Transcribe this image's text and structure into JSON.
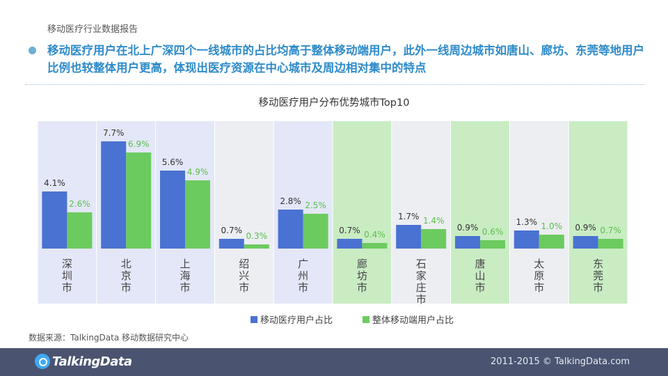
{
  "report_title": "移动医疗行业数据报告",
  "headline": "移动医疗用户在北上广深四个一线城市的占比均高于整体移动端用户，此外一线周边城市如唐山、廊坊、东莞等地用户比例也较整体用户更高，体现出医疗资源在中心城市及周边相对集中的特点",
  "source": "数据来源：TalkingData 移动数据研究中心",
  "footer": {
    "logo": "TalkingData",
    "copyright": "2011-2015 © TalkingData.com"
  },
  "colors": {
    "series1": "#4a72d2",
    "series2": "#6ccb5f",
    "band_first_tier": "#e3e7f7",
    "band_near_city": "#c9ecc3",
    "band_default": "#eceef2",
    "label2": "#5bbf4b"
  },
  "chart_data": {
    "type": "bar",
    "title": "移动医疗用户分布优势城市Top10",
    "categories": [
      "深圳市",
      "北京市",
      "上海市",
      "绍兴市",
      "广州市",
      "廊坊市",
      "石家庄市",
      "唐山市",
      "太原市",
      "东莞市"
    ],
    "category_groups": [
      "first_tier",
      "first_tier",
      "first_tier",
      "default",
      "first_tier",
      "near_city",
      "default",
      "near_city",
      "default",
      "near_city"
    ],
    "series": [
      {
        "name": "移动医疗用户占比",
        "values": [
          4.1,
          7.7,
          5.6,
          0.7,
          2.8,
          0.7,
          1.7,
          0.9,
          1.3,
          0.9
        ],
        "labels": [
          "4.1%",
          "7.7%",
          "5.6%",
          "0.7%",
          "2.8%",
          "0.7%",
          "1.7%",
          "0.9%",
          "1.3%",
          "0.9%"
        ]
      },
      {
        "name": "整体移动端用户占比",
        "values": [
          2.6,
          6.9,
          4.9,
          0.3,
          2.5,
          0.4,
          1.4,
          0.6,
          1.0,
          0.7
        ],
        "labels": [
          "2.6%",
          "6.9%",
          "4.9%",
          "0.3%",
          "2.5%",
          "0.4%",
          "1.4%",
          "0.6%",
          "1.0%",
          "0.7%"
        ]
      }
    ],
    "unit": "%",
    "grid": false,
    "legend_position": "bottom-center"
  }
}
